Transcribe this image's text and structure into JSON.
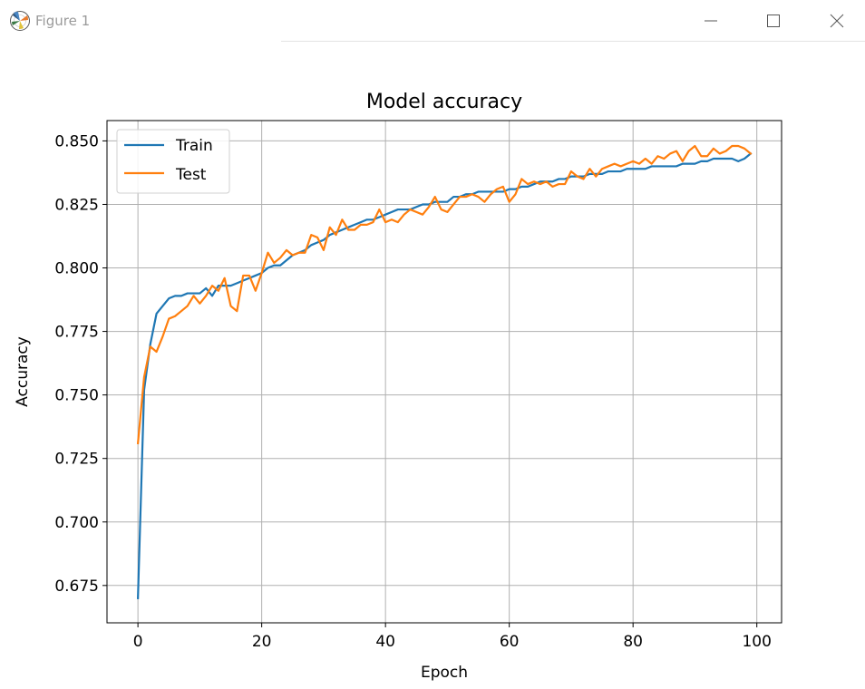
{
  "window": {
    "title": "Figure 1"
  },
  "chart_data": {
    "type": "line",
    "title": "Model accuracy",
    "xlabel": "Epoch",
    "ylabel": "Accuracy",
    "xlim": [
      -5,
      104
    ],
    "ylim": [
      0.6603,
      0.858
    ],
    "xticks": [
      0,
      20,
      40,
      60,
      80,
      100
    ],
    "xtick_labels": [
      "0",
      "20",
      "40",
      "60",
      "80",
      "100"
    ],
    "yticks": [
      0.675,
      0.7,
      0.725,
      0.75,
      0.775,
      0.8,
      0.825,
      0.85
    ],
    "ytick_labels": [
      "0.675",
      "0.700",
      "0.725",
      "0.750",
      "0.775",
      "0.800",
      "0.825",
      "0.850"
    ],
    "grid": true,
    "legend_position": "upper-left",
    "x": [
      0,
      1,
      2,
      3,
      4,
      5,
      6,
      7,
      8,
      9,
      10,
      11,
      12,
      13,
      14,
      15,
      16,
      17,
      18,
      19,
      20,
      21,
      22,
      23,
      24,
      25,
      26,
      27,
      28,
      29,
      30,
      31,
      32,
      33,
      34,
      35,
      36,
      37,
      38,
      39,
      40,
      41,
      42,
      43,
      44,
      45,
      46,
      47,
      48,
      49,
      50,
      51,
      52,
      53,
      54,
      55,
      56,
      57,
      58,
      59,
      60,
      61,
      62,
      63,
      64,
      65,
      66,
      67,
      68,
      69,
      70,
      71,
      72,
      73,
      74,
      75,
      76,
      77,
      78,
      79,
      80,
      81,
      82,
      83,
      84,
      85,
      86,
      87,
      88,
      89,
      90,
      91,
      92,
      93,
      94,
      95,
      96,
      97,
      98,
      99
    ],
    "series": [
      {
        "name": "Train",
        "color": "#1f77b4",
        "values": [
          0.67,
          0.752,
          0.77,
          0.782,
          0.785,
          0.788,
          0.789,
          0.789,
          0.79,
          0.79,
          0.79,
          0.792,
          0.789,
          0.793,
          0.793,
          0.793,
          0.794,
          0.795,
          0.796,
          0.797,
          0.798,
          0.8,
          0.801,
          0.801,
          0.803,
          0.805,
          0.806,
          0.807,
          0.809,
          0.81,
          0.811,
          0.813,
          0.814,
          0.815,
          0.816,
          0.817,
          0.818,
          0.819,
          0.819,
          0.82,
          0.821,
          0.822,
          0.823,
          0.823,
          0.823,
          0.824,
          0.825,
          0.825,
          0.826,
          0.826,
          0.826,
          0.828,
          0.828,
          0.829,
          0.829,
          0.83,
          0.83,
          0.83,
          0.83,
          0.83,
          0.831,
          0.831,
          0.832,
          0.832,
          0.833,
          0.834,
          0.834,
          0.834,
          0.835,
          0.835,
          0.836,
          0.836,
          0.836,
          0.837,
          0.837,
          0.837,
          0.838,
          0.838,
          0.838,
          0.839,
          0.839,
          0.839,
          0.839,
          0.84,
          0.84,
          0.84,
          0.84,
          0.84,
          0.841,
          0.841,
          0.841,
          0.842,
          0.842,
          0.843,
          0.843,
          0.843,
          0.843,
          0.842,
          0.843,
          0.845
        ]
      },
      {
        "name": "Test",
        "color": "#ff7f0e",
        "values": [
          0.731,
          0.757,
          0.769,
          0.767,
          0.773,
          0.78,
          0.781,
          0.783,
          0.785,
          0.789,
          0.786,
          0.789,
          0.793,
          0.791,
          0.796,
          0.785,
          0.783,
          0.797,
          0.797,
          0.791,
          0.798,
          0.806,
          0.802,
          0.804,
          0.807,
          0.805,
          0.806,
          0.806,
          0.813,
          0.812,
          0.807,
          0.816,
          0.813,
          0.819,
          0.815,
          0.815,
          0.817,
          0.817,
          0.818,
          0.823,
          0.818,
          0.819,
          0.818,
          0.821,
          0.823,
          0.822,
          0.821,
          0.824,
          0.828,
          0.823,
          0.822,
          0.825,
          0.828,
          0.828,
          0.829,
          0.828,
          0.826,
          0.829,
          0.831,
          0.832,
          0.826,
          0.829,
          0.835,
          0.833,
          0.834,
          0.833,
          0.834,
          0.832,
          0.833,
          0.833,
          0.838,
          0.836,
          0.835,
          0.839,
          0.836,
          0.839,
          0.84,
          0.841,
          0.84,
          0.841,
          0.842,
          0.841,
          0.843,
          0.841,
          0.844,
          0.843,
          0.845,
          0.846,
          0.842,
          0.846,
          0.848,
          0.844,
          0.844,
          0.847,
          0.845,
          0.846,
          0.848,
          0.848,
          0.847,
          0.845
        ]
      }
    ]
  }
}
